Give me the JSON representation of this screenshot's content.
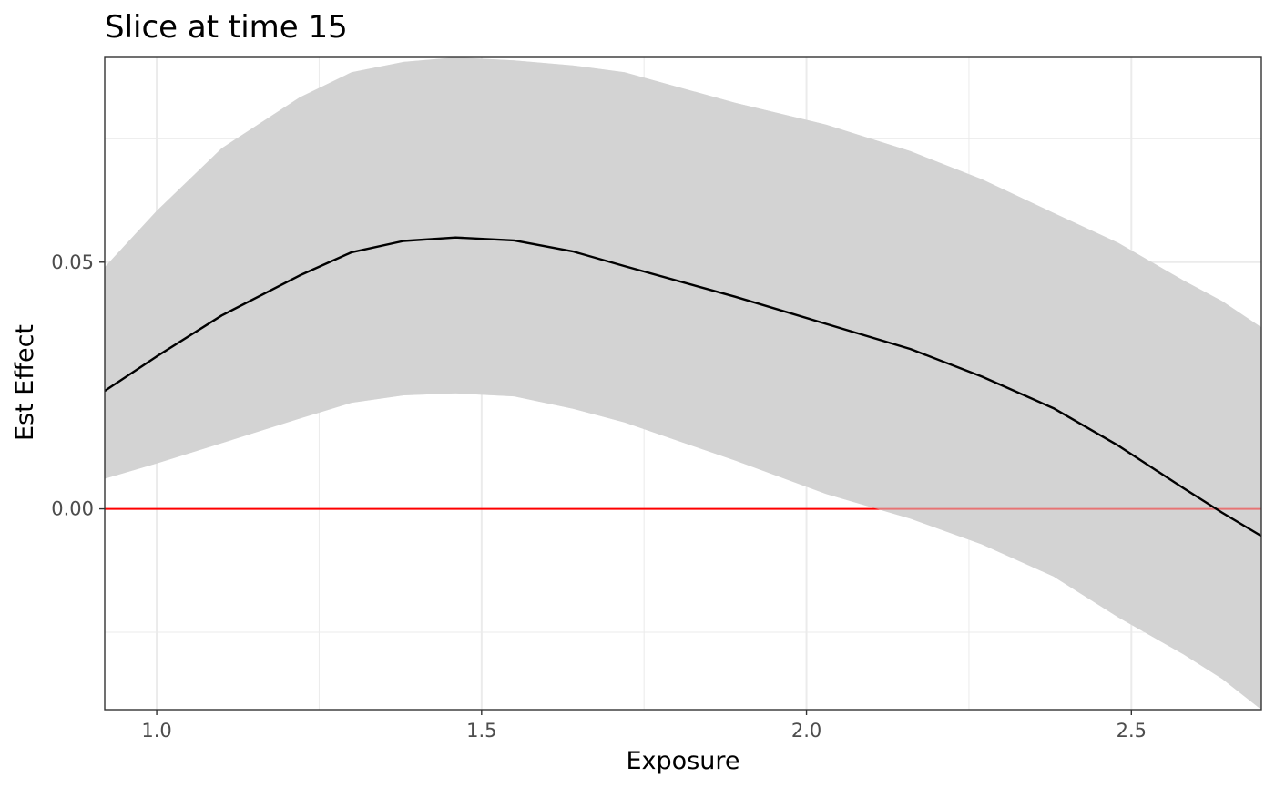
{
  "chart_data": {
    "type": "line",
    "title": "Slice at time 15",
    "xlabel": "Exposure",
    "ylabel": "Est Effect",
    "xlim": [
      0.92,
      2.7
    ],
    "ylim": [
      -0.0407,
      0.0915
    ],
    "x_ticks": [
      {
        "value": 1.0,
        "label": "1.0"
      },
      {
        "value": 1.5,
        "label": "1.5"
      },
      {
        "value": 2.0,
        "label": "2.0"
      },
      {
        "value": 2.5,
        "label": "2.5"
      }
    ],
    "x_minor": [
      1.25,
      1.75,
      2.25
    ],
    "y_ticks": [
      {
        "value": 0.0,
        "label": "0.00"
      },
      {
        "value": 0.05,
        "label": "0.05"
      }
    ],
    "y_minor": [
      -0.025,
      0.025,
      0.075
    ],
    "grid": true,
    "reference_line": {
      "y": 0.0,
      "color": "#ff0000"
    },
    "series": [
      {
        "type": "ribbon",
        "color": "#d3d3d3",
        "x": [
          0.92,
          1.0,
          1.1,
          1.22,
          1.3,
          1.38,
          1.46,
          1.55,
          1.64,
          1.72,
          1.89,
          2.03,
          2.16,
          2.27,
          2.38,
          2.48,
          2.58,
          2.64,
          2.7
        ],
        "lower": [
          0.0061,
          0.0092,
          0.0133,
          0.0183,
          0.0215,
          0.023,
          0.0234,
          0.0228,
          0.0203,
          0.0175,
          0.0098,
          0.003,
          -0.002,
          -0.0072,
          -0.0137,
          -0.022,
          -0.0295,
          -0.0345,
          -0.0407
        ],
        "upper": [
          0.049,
          0.0604,
          0.0731,
          0.0834,
          0.0885,
          0.0906,
          0.0915,
          0.0909,
          0.0899,
          0.0885,
          0.0823,
          0.0779,
          0.0725,
          0.0668,
          0.06,
          0.0539,
          0.0463,
          0.0421,
          0.0368
        ]
      },
      {
        "type": "line",
        "color": "#000000",
        "x": [
          0.92,
          1.0,
          1.1,
          1.22,
          1.3,
          1.38,
          1.46,
          1.55,
          1.64,
          1.72,
          1.89,
          2.03,
          2.16,
          2.27,
          2.38,
          2.48,
          2.58,
          2.64,
          2.7
        ],
        "y": [
          0.0239,
          0.0309,
          0.0392,
          0.0473,
          0.052,
          0.0543,
          0.055,
          0.0544,
          0.0522,
          0.0492,
          0.043,
          0.0375,
          0.0324,
          0.0268,
          0.0204,
          0.0128,
          0.0042,
          -0.0008,
          -0.0055
        ]
      }
    ]
  }
}
